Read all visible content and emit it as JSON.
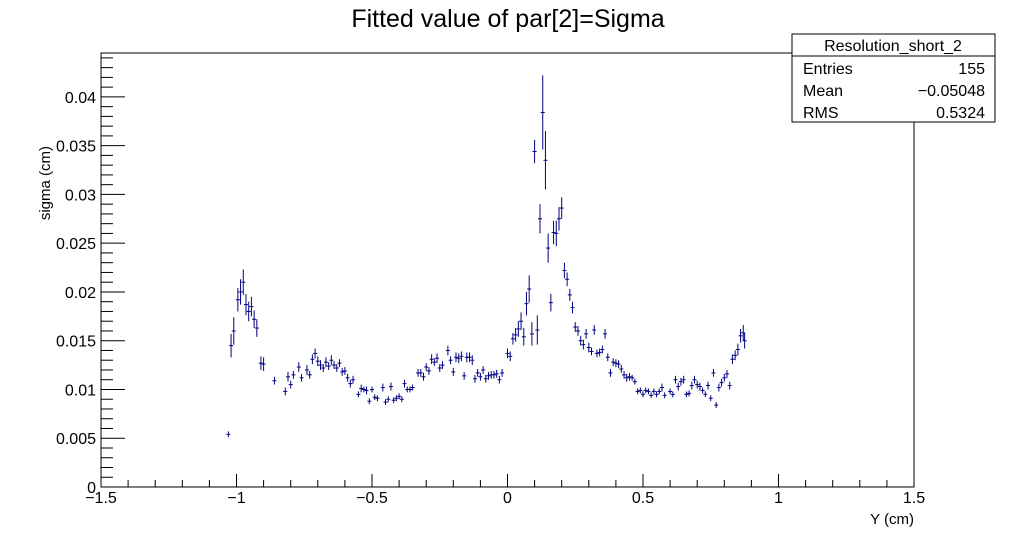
{
  "chart_data": {
    "type": "scatter",
    "title": "Fitted value of par[2]=Sigma",
    "xlabel": "Y (cm)",
    "ylabel": "sigma (cm)",
    "xlim": [
      -1.5,
      1.5
    ],
    "ylim": [
      0,
      0.0445
    ],
    "x_ticks": [
      -1.5,
      -1,
      -0.5,
      0,
      0.5,
      1,
      1.5
    ],
    "x_tick_labels": [
      "−1.5",
      "−1",
      "−0.5",
      "0",
      "0.5",
      "1",
      "1.5"
    ],
    "y_ticks": [
      0,
      0.005,
      0.01,
      0.015,
      0.02,
      0.025,
      0.03,
      0.035,
      0.04
    ],
    "y_tick_labels": [
      "0",
      "0.005",
      "0.01",
      "0.015",
      "0.02",
      "0.025",
      "0.03",
      "0.035",
      "0.04"
    ],
    "grid": false,
    "marker_color": "#000080",
    "stats_box": {
      "title": "Resolution_short_2",
      "rows": [
        {
          "label": "Entries",
          "value": "155"
        },
        {
          "label": "Mean",
          "value": "−0.05048"
        },
        {
          "label": "RMS",
          "value": "0.5324"
        }
      ]
    },
    "points": [
      [
        -1.03,
        0.0054,
        0.0003
      ],
      [
        -1.02,
        0.0145,
        0.0012
      ],
      [
        -1.01,
        0.016,
        0.0014
      ],
      [
        -0.995,
        0.0192,
        0.0012
      ],
      [
        -0.985,
        0.02,
        0.0013
      ],
      [
        -0.975,
        0.021,
        0.0013
      ],
      [
        -0.965,
        0.0187,
        0.0011
      ],
      [
        -0.955,
        0.018,
        0.001
      ],
      [
        -0.945,
        0.0185,
        0.001
      ],
      [
        -0.935,
        0.0172,
        0.0009
      ],
      [
        -0.925,
        0.0163,
        0.0009
      ],
      [
        -0.91,
        0.0127,
        0.0007
      ],
      [
        -0.9,
        0.0126,
        0.0007
      ],
      [
        -0.86,
        0.0109,
        0.0004
      ],
      [
        -0.82,
        0.0098,
        0.0004
      ],
      [
        -0.81,
        0.0113,
        0.0005
      ],
      [
        -0.8,
        0.0105,
        0.0004
      ],
      [
        -0.79,
        0.0115,
        0.0004
      ],
      [
        -0.77,
        0.0123,
        0.0005
      ],
      [
        -0.76,
        0.0112,
        0.0004
      ],
      [
        -0.74,
        0.012,
        0.0005
      ],
      [
        -0.73,
        0.0115,
        0.0004
      ],
      [
        -0.72,
        0.0131,
        0.0005
      ],
      [
        -0.71,
        0.0137,
        0.0005
      ],
      [
        -0.7,
        0.0129,
        0.0005
      ],
      [
        -0.69,
        0.0125,
        0.0005
      ],
      [
        -0.68,
        0.0122,
        0.0004
      ],
      [
        -0.67,
        0.0128,
        0.0005
      ],
      [
        -0.66,
        0.0124,
        0.0004
      ],
      [
        -0.65,
        0.013,
        0.0005
      ],
      [
        -0.64,
        0.0125,
        0.0004
      ],
      [
        -0.63,
        0.0122,
        0.0004
      ],
      [
        -0.62,
        0.0127,
        0.0004
      ],
      [
        -0.61,
        0.0118,
        0.0004
      ],
      [
        -0.6,
        0.0119,
        0.0004
      ],
      [
        -0.59,
        0.0112,
        0.0004
      ],
      [
        -0.58,
        0.0106,
        0.0004
      ],
      [
        -0.57,
        0.011,
        0.0004
      ],
      [
        -0.55,
        0.0095,
        0.0003
      ],
      [
        -0.54,
        0.0101,
        0.0004
      ],
      [
        -0.53,
        0.01,
        0.0003
      ],
      [
        -0.52,
        0.0099,
        0.0004
      ],
      [
        -0.51,
        0.0088,
        0.0003
      ],
      [
        -0.5,
        0.01,
        0.0003
      ],
      [
        -0.49,
        0.0092,
        0.0003
      ],
      [
        -0.48,
        0.0091,
        0.0003
      ],
      [
        -0.46,
        0.0102,
        0.0004
      ],
      [
        -0.45,
        0.0087,
        0.0003
      ],
      [
        -0.44,
        0.009,
        0.0003
      ],
      [
        -0.43,
        0.0103,
        0.0004
      ],
      [
        -0.42,
        0.0089,
        0.0003
      ],
      [
        -0.41,
        0.0091,
        0.0003
      ],
      [
        -0.4,
        0.0093,
        0.0003
      ],
      [
        -0.39,
        0.009,
        0.0003
      ],
      [
        -0.38,
        0.0106,
        0.0004
      ],
      [
        -0.37,
        0.01,
        0.0003
      ],
      [
        -0.36,
        0.01,
        0.0003
      ],
      [
        -0.35,
        0.0102,
        0.0003
      ],
      [
        -0.33,
        0.0117,
        0.0004
      ],
      [
        -0.32,
        0.0117,
        0.0004
      ],
      [
        -0.31,
        0.0113,
        0.0004
      ],
      [
        -0.3,
        0.0123,
        0.0004
      ],
      [
        -0.29,
        0.0119,
        0.0004
      ],
      [
        -0.28,
        0.0131,
        0.0005
      ],
      [
        -0.27,
        0.0128,
        0.0004
      ],
      [
        -0.26,
        0.0132,
        0.0005
      ],
      [
        -0.25,
        0.0122,
        0.0004
      ],
      [
        -0.24,
        0.0125,
        0.0004
      ],
      [
        -0.22,
        0.014,
        0.0005
      ],
      [
        -0.21,
        0.013,
        0.0004
      ],
      [
        -0.2,
        0.0118,
        0.0004
      ],
      [
        -0.19,
        0.0133,
        0.0005
      ],
      [
        -0.18,
        0.0132,
        0.0005
      ],
      [
        -0.17,
        0.0134,
        0.0005
      ],
      [
        -0.16,
        0.0114,
        0.0004
      ],
      [
        -0.15,
        0.0133,
        0.0005
      ],
      [
        -0.14,
        0.0133,
        0.0005
      ],
      [
        -0.13,
        0.013,
        0.0005
      ],
      [
        -0.12,
        0.0111,
        0.0004
      ],
      [
        -0.11,
        0.0117,
        0.0004
      ],
      [
        -0.1,
        0.0113,
        0.0004
      ],
      [
        -0.09,
        0.012,
        0.0004
      ],
      [
        -0.08,
        0.0111,
        0.0004
      ],
      [
        -0.07,
        0.0114,
        0.0004
      ],
      [
        -0.06,
        0.0115,
        0.0004
      ],
      [
        -0.05,
        0.0115,
        0.0004
      ],
      [
        -0.04,
        0.0116,
        0.0004
      ],
      [
        -0.03,
        0.011,
        0.0004
      ],
      [
        -0.02,
        0.0117,
        0.0004
      ],
      [
        0.0,
        0.0137,
        0.0005
      ],
      [
        0.01,
        0.0134,
        0.0005
      ],
      [
        0.02,
        0.0152,
        0.0006
      ],
      [
        0.03,
        0.0156,
        0.0007
      ],
      [
        0.04,
        0.0162,
        0.0008
      ],
      [
        0.05,
        0.017,
        0.0009
      ],
      [
        0.06,
        0.0154,
        0.0009
      ],
      [
        0.07,
        0.0188,
        0.0012
      ],
      [
        0.08,
        0.0203,
        0.0014
      ],
      [
        0.09,
        0.0157,
        0.0012
      ],
      [
        0.1,
        0.0344,
        0.0012
      ],
      [
        0.11,
        0.0161,
        0.0015
      ],
      [
        0.12,
        0.0275,
        0.0015
      ],
      [
        0.13,
        0.0384,
        0.0038
      ],
      [
        0.14,
        0.0335,
        0.003
      ],
      [
        0.15,
        0.0245,
        0.0015
      ],
      [
        0.16,
        0.0189,
        0.0009
      ],
      [
        0.17,
        0.0261,
        0.0012
      ],
      [
        0.18,
        0.026,
        0.0013
      ],
      [
        0.19,
        0.0275,
        0.0012
      ],
      [
        0.2,
        0.0286,
        0.0011
      ],
      [
        0.21,
        0.0222,
        0.0008
      ],
      [
        0.22,
        0.0213,
        0.0007
      ],
      [
        0.23,
        0.0197,
        0.0006
      ],
      [
        0.24,
        0.0184,
        0.0006
      ],
      [
        0.25,
        0.0164,
        0.0005
      ],
      [
        0.26,
        0.016,
        0.0005
      ],
      [
        0.27,
        0.015,
        0.0005
      ],
      [
        0.28,
        0.0146,
        0.0005
      ],
      [
        0.29,
        0.0157,
        0.0005
      ],
      [
        0.3,
        0.0143,
        0.0005
      ],
      [
        0.31,
        0.0139,
        0.0004
      ],
      [
        0.32,
        0.0161,
        0.0005
      ],
      [
        0.33,
        0.0137,
        0.0004
      ],
      [
        0.34,
        0.0138,
        0.0004
      ],
      [
        0.35,
        0.0141,
        0.0004
      ],
      [
        0.36,
        0.0157,
        0.0005
      ],
      [
        0.37,
        0.0133,
        0.0004
      ],
      [
        0.38,
        0.0117,
        0.0004
      ],
      [
        0.39,
        0.0128,
        0.0004
      ],
      [
        0.4,
        0.0127,
        0.0004
      ],
      [
        0.41,
        0.0126,
        0.0004
      ],
      [
        0.42,
        0.0121,
        0.0004
      ],
      [
        0.43,
        0.0115,
        0.0004
      ],
      [
        0.44,
        0.0112,
        0.0004
      ],
      [
        0.45,
        0.0113,
        0.0004
      ],
      [
        0.46,
        0.0112,
        0.0003
      ],
      [
        0.47,
        0.0108,
        0.0003
      ],
      [
        0.48,
        0.0098,
        0.0003
      ],
      [
        0.49,
        0.0099,
        0.0003
      ],
      [
        0.5,
        0.0095,
        0.0003
      ],
      [
        0.51,
        0.0099,
        0.0003
      ],
      [
        0.52,
        0.0098,
        0.0003
      ],
      [
        0.53,
        0.0094,
        0.0003
      ],
      [
        0.54,
        0.0098,
        0.0003
      ],
      [
        0.55,
        0.0095,
        0.0003
      ],
      [
        0.56,
        0.0098,
        0.0003
      ],
      [
        0.57,
        0.0102,
        0.0004
      ],
      [
        0.58,
        0.0094,
        0.0003
      ],
      [
        0.6,
        0.0098,
        0.0003
      ],
      [
        0.61,
        0.0095,
        0.0003
      ],
      [
        0.62,
        0.011,
        0.0004
      ],
      [
        0.63,
        0.0103,
        0.0004
      ],
      [
        0.64,
        0.0108,
        0.0004
      ],
      [
        0.65,
        0.011,
        0.0004
      ],
      [
        0.66,
        0.0095,
        0.0003
      ],
      [
        0.67,
        0.0096,
        0.0003
      ],
      [
        0.68,
        0.0104,
        0.0004
      ],
      [
        0.69,
        0.011,
        0.0004
      ],
      [
        0.7,
        0.0105,
        0.0004
      ],
      [
        0.71,
        0.0103,
        0.0004
      ],
      [
        0.72,
        0.0099,
        0.0003
      ],
      [
        0.73,
        0.0095,
        0.0003
      ],
      [
        0.74,
        0.0104,
        0.0004
      ],
      [
        0.75,
        0.0091,
        0.0003
      ],
      [
        0.76,
        0.0117,
        0.0004
      ],
      [
        0.77,
        0.0084,
        0.0003
      ],
      [
        0.78,
        0.0102,
        0.0004
      ],
      [
        0.79,
        0.0107,
        0.0004
      ],
      [
        0.8,
        0.0112,
        0.0004
      ],
      [
        0.81,
        0.0116,
        0.0004
      ],
      [
        0.82,
        0.0104,
        0.0004
      ],
      [
        0.83,
        0.0131,
        0.0005
      ],
      [
        0.84,
        0.0135,
        0.0005
      ],
      [
        0.85,
        0.0141,
        0.0006
      ],
      [
        0.86,
        0.0155,
        0.0007
      ],
      [
        0.87,
        0.0158,
        0.0008
      ],
      [
        0.875,
        0.015,
        0.0008
      ]
    ]
  }
}
